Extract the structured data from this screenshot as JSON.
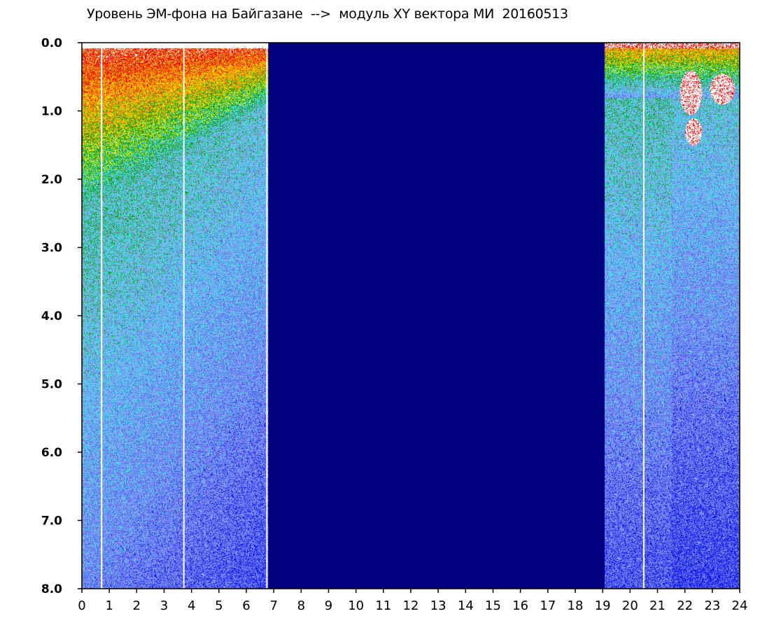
{
  "chart_data": {
    "type": "heatmap",
    "title": "Уровень ЭМ-фона на Байгазане  -->  модуль XY вектора МИ  20160513",
    "xlabel": "",
    "ylabel": "",
    "x_ticks": [
      "0",
      "1",
      "2",
      "3",
      "4",
      "5",
      "6",
      "7",
      "8",
      "9",
      "10",
      "11",
      "12",
      "13",
      "14",
      "15",
      "16",
      "17",
      "18",
      "19",
      "20",
      "21",
      "22",
      "23",
      "24"
    ],
    "y_ticks": [
      "0.0",
      "1.0",
      "2.0",
      "3.0",
      "4.0",
      "5.0",
      "6.0",
      "7.0",
      "8.0"
    ],
    "xlim": [
      0,
      24
    ],
    "ylim": [
      0,
      8.0
    ],
    "y_inverted": true,
    "grid": false,
    "no_data_interval": [
      6.8,
      19.05
    ],
    "no_data_color": "#000080",
    "colormap": [
      "#0a14e6",
      "#5a64f0",
      "#8ca0f5",
      "#40e0e0",
      "#1a9a1a",
      "#e6e600",
      "#ff7a00",
      "#e60000",
      "#ffffff"
    ],
    "white_gap_lines_x": [
      0.72,
      3.72,
      6.75,
      20.5
    ],
    "high_intensity_patches": [
      {
        "x": [
          21.8,
          22.6
        ],
        "y": [
          0.4,
          1.05
        ]
      },
      {
        "x": [
          22.0,
          22.6
        ],
        "y": [
          1.1,
          1.5
        ]
      },
      {
        "x": [
          22.9,
          23.8
        ],
        "y": [
          0.45,
          0.9
        ]
      }
    ]
  }
}
